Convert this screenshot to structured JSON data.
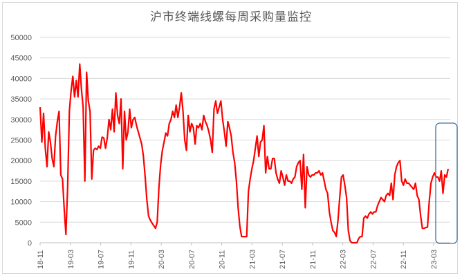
{
  "chart": {
    "title": "沪市终端线螺每周采购量监控",
    "line_color": "#ff0000",
    "highlight_box_color": "#41719c",
    "grid_color": "#d9d9d9",
    "text_color": "#595959"
  },
  "chart_data": {
    "type": "line",
    "title": "沪市终端线螺每周采购量监控",
    "xlabel": "",
    "ylabel": "",
    "ylim": [
      0,
      50000
    ],
    "yticks": [
      0,
      5000,
      10000,
      15000,
      20000,
      25000,
      30000,
      35000,
      40000,
      45000,
      50000
    ],
    "xticks": [
      "18-11",
      "19-03",
      "19-07",
      "19-11",
      "20-03",
      "20-07",
      "20-11",
      "21-03",
      "21-07",
      "21-11",
      "22-03",
      "22-07",
      "22-11",
      "23-03"
    ],
    "grid": true,
    "legend": "none",
    "annotations": [
      "rounded rectangle highlighting the latest weeks after 23-03"
    ],
    "series": [
      {
        "name": "沪市终端线螺每周采购量",
        "x_week_index_start": "18-11",
        "values": [
          33000,
          24500,
          31500,
          23000,
          18500,
          27000,
          24500,
          20500,
          18500,
          26000,
          29500,
          32000,
          16500,
          15500,
          8000,
          2000,
          13500,
          32000,
          37000,
          40500,
          35500,
          39500,
          35500,
          43500,
          37500,
          33000,
          15000,
          41500,
          34500,
          32000,
          15500,
          22500,
          23000,
          22700,
          23500,
          23000,
          25700,
          25500,
          23000,
          25500,
          30000,
          27500,
          32500,
          27000,
          36500,
          31000,
          29000,
          35000,
          18000,
          32000,
          25000,
          27000,
          32500,
          28000,
          30000,
          30500,
          28500,
          27000,
          25500,
          24000,
          21000,
          16000,
          10500,
          6500,
          5500,
          4800,
          4200,
          3500,
          5000,
          13500,
          19000,
          22500,
          24500,
          26700,
          26000,
          29000,
          30000,
          32000,
          30500,
          33500,
          30500,
          33000,
          36500,
          32000,
          25000,
          22500,
          31000,
          27000,
          29000,
          28000,
          24000,
          28500,
          28000,
          29000,
          27500,
          31000,
          29500,
          28500,
          27000,
          25000,
          22000,
          32500,
          34500,
          31500,
          33000,
          34500,
          30000,
          27000,
          23500,
          29500,
          28000,
          26000,
          22000,
          19500,
          15000,
          8500,
          4000,
          1500,
          1500,
          1500,
          1500,
          12500,
          15500,
          18000,
          20000,
          23000,
          26000,
          21000,
          24500,
          25000,
          28500,
          17000,
          21000,
          18000,
          18000,
          20500,
          20500,
          17000,
          15500,
          14500,
          17500,
          16000,
          14000,
          16500,
          15000,
          15000,
          14500,
          15500,
          16000,
          18500,
          19500,
          20000,
          13000,
          21500,
          8500,
          18500,
          16500,
          16000,
          16500,
          16500,
          17000,
          17000,
          17500,
          16500,
          17000,
          15000,
          13000,
          12000,
          7500,
          5000,
          3000,
          2500,
          1500,
          5500,
          11000,
          16000,
          16500,
          14000,
          11000,
          3000,
          500,
          0,
          0,
          0,
          0,
          1000,
          1500,
          1500,
          6000,
          6500,
          6000,
          7000,
          7500,
          7000,
          7500,
          7500,
          9000,
          10000,
          11000,
          10500,
          10000,
          11500,
          12000,
          11500,
          14500,
          10500,
          16500,
          18500,
          19500,
          20000,
          15000,
          14000,
          15500,
          14500,
          14500,
          14000,
          13500,
          13000,
          14500,
          11500,
          10500,
          6500,
          3500,
          3500,
          3700,
          3800,
          10000,
          14500,
          16000,
          17000,
          16000,
          16000,
          15000,
          17500,
          12000,
          16500,
          16000,
          18000
        ]
      }
    ]
  }
}
